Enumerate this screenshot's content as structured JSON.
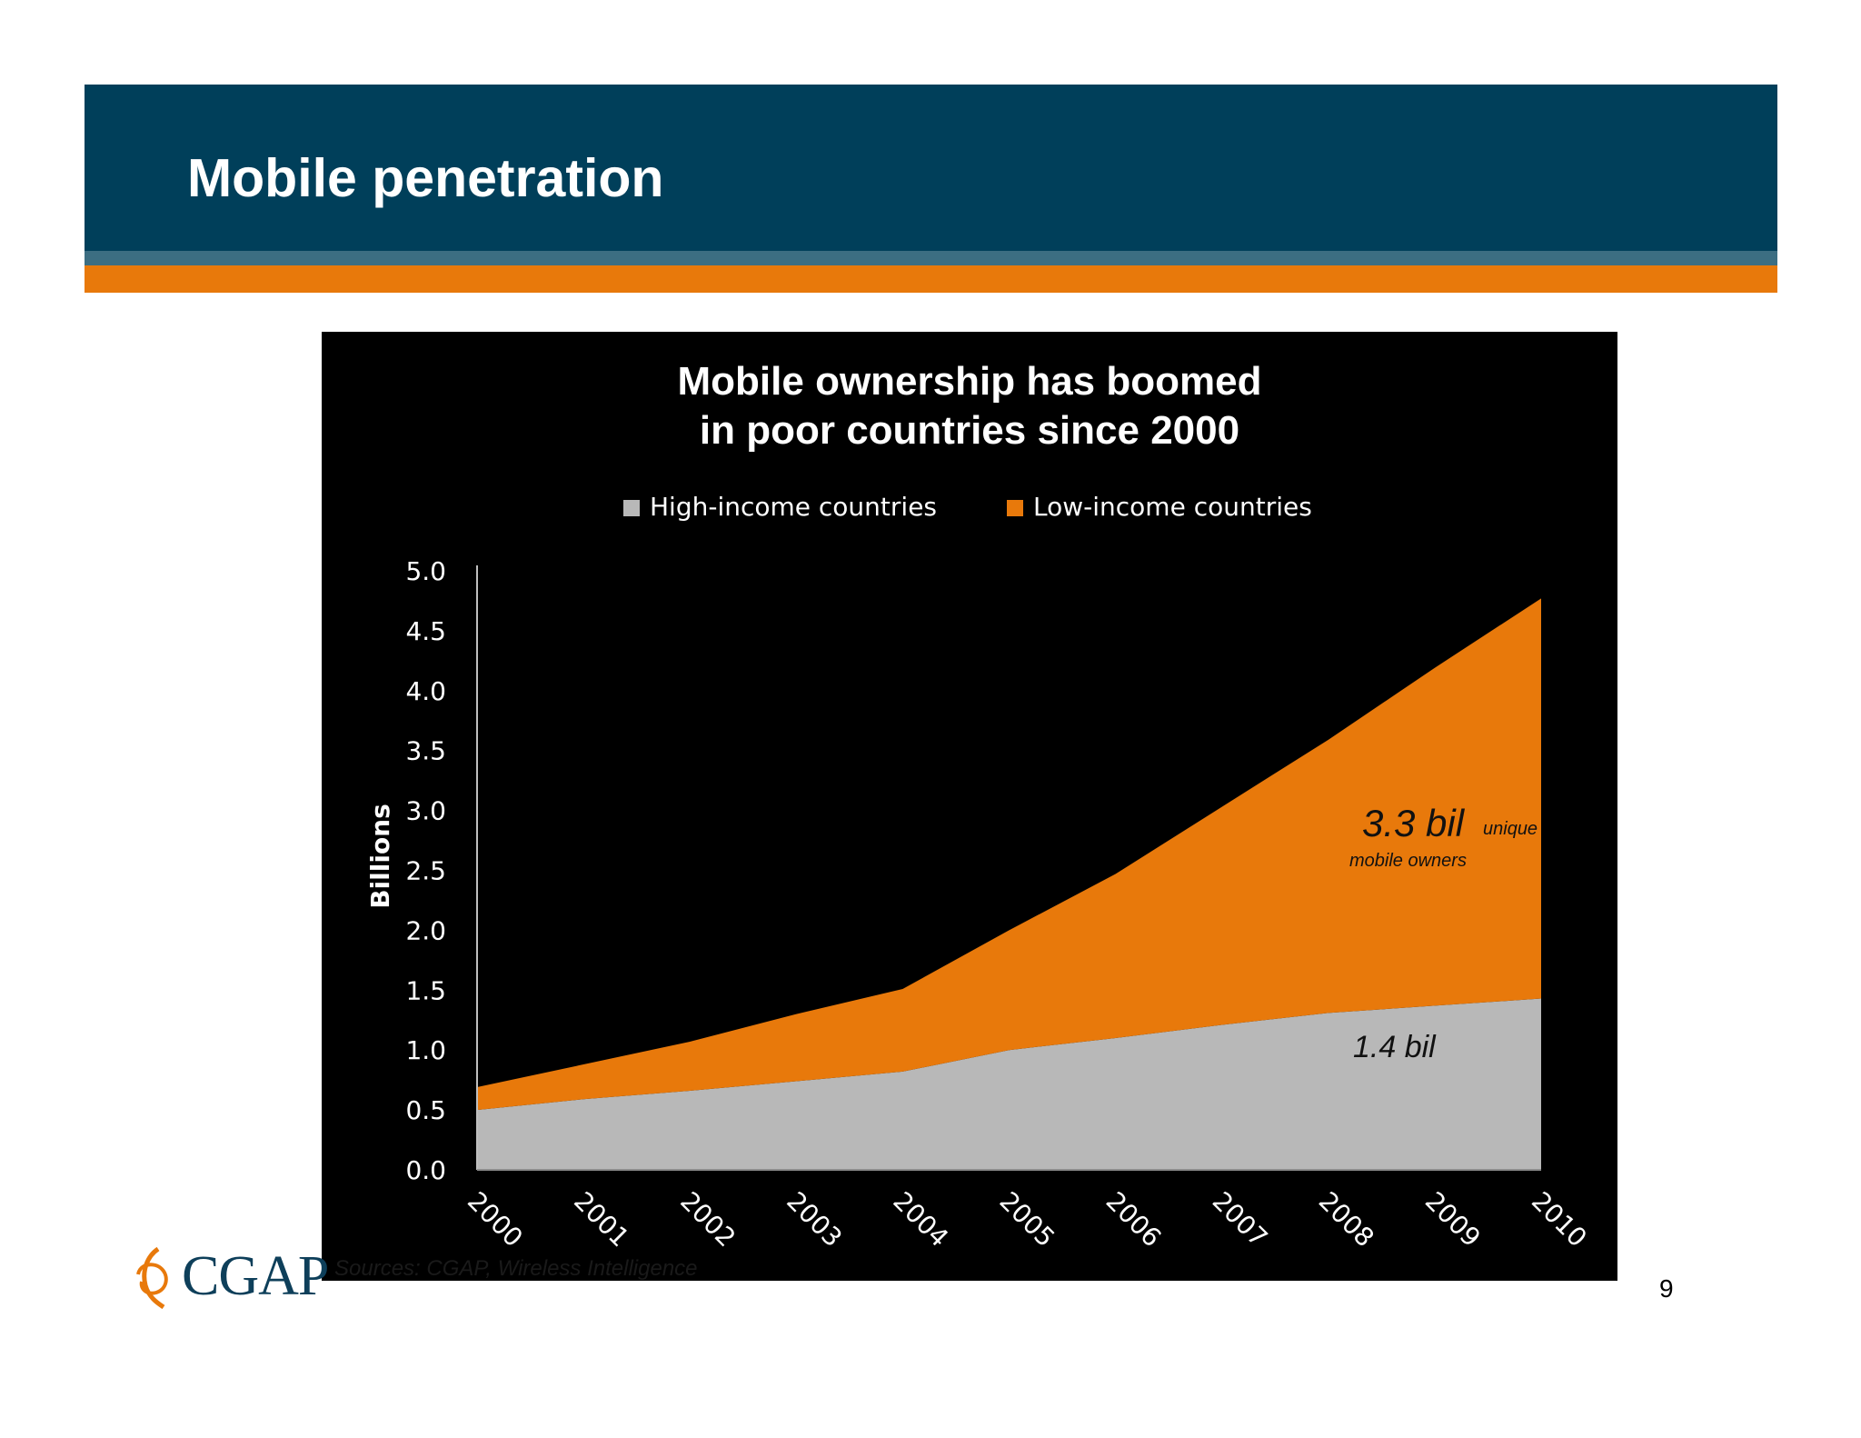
{
  "slide": {
    "title": "Mobile penetration",
    "sources": "Sources: CGAP, Wireless Intelligence",
    "page_number": "9",
    "logo_text": "CGAP",
    "colors": {
      "header": "#003f5a",
      "stripe_blue": "#3c6e82",
      "stripe_orange": "#e8790b"
    }
  },
  "chart_data": {
    "type": "area",
    "title_lines": [
      "Mobile ownership has boomed",
      "in poor countries since 2000"
    ],
    "ylabel": "Billions",
    "xlabel": "",
    "ylim": [
      0,
      5.0
    ],
    "yticks": [
      "5.0",
      "4.5",
      "4.0",
      "3.5",
      "3.0",
      "2.5",
      "2.0",
      "1.5",
      "1.0",
      "0.5",
      "0.0"
    ],
    "x": [
      "2000",
      "2001",
      "2002",
      "2003",
      "2004",
      "2005",
      "2006",
      "2007",
      "2008",
      "2009",
      "2010"
    ],
    "stacked": true,
    "series": [
      {
        "name": "High-income countries",
        "color": "#b8b8b8",
        "values": [
          0.5,
          0.59,
          0.66,
          0.74,
          0.82,
          1.0,
          1.1,
          1.21,
          1.31,
          1.37,
          1.43
        ]
      },
      {
        "name": "Low-income countries",
        "color": "#e8790b",
        "values": [
          0.19,
          0.29,
          0.41,
          0.56,
          0.69,
          1.0,
          1.37,
          1.82,
          2.28,
          2.82,
          3.34
        ]
      }
    ],
    "legend_position": "top",
    "grid": false,
    "annotations": {
      "low_big": "3.3 bil",
      "low_small1": "unique",
      "low_small2": "mobile owners",
      "high": "1.4 bil"
    }
  }
}
